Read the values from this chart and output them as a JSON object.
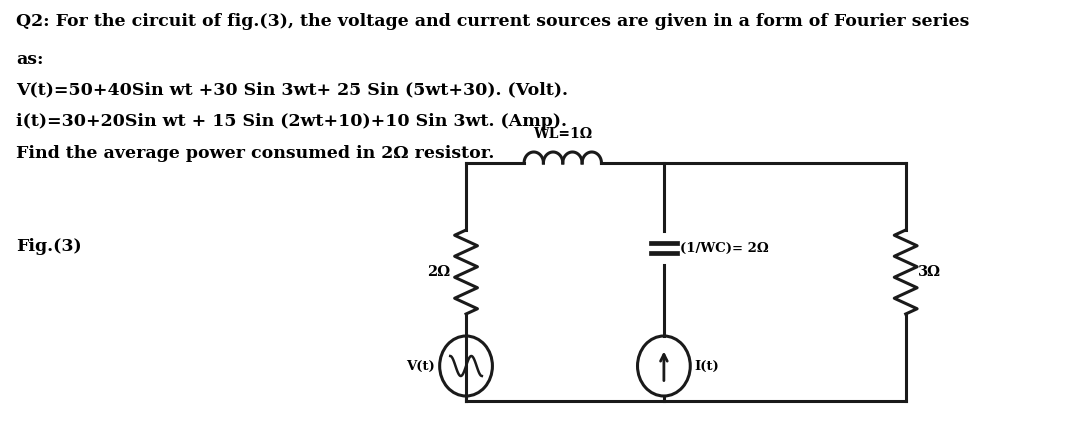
{
  "title_line1": "Q2: For the circuit of fig.(3), the voltage and current sources are given in a form of Fourier series",
  "title_line2": "as:",
  "line3": "V(t)=50+40Sin wt +30 Sin 3wt+ 25 Sin (5wt+30). (Volt).",
  "line4": "i(t)=30+20Sin wt + 15 Sin (2wt+10)+10 Sin 3wt. (Amp).",
  "line5": "Find the average power consumed in 2Ω resistor.",
  "fig_label": "Fig.(3)",
  "bg_color": "#ffffff",
  "text_color": "#000000",
  "circuit_color": "#1a1a1a",
  "label_wl": "WL=1Ω",
  "label_2ohm": "2Ω",
  "label_cap": "(1/WC)= 2Ω",
  "label_3ohm": "3Ω",
  "label_v": "V(t)",
  "label_i": "I(t)"
}
